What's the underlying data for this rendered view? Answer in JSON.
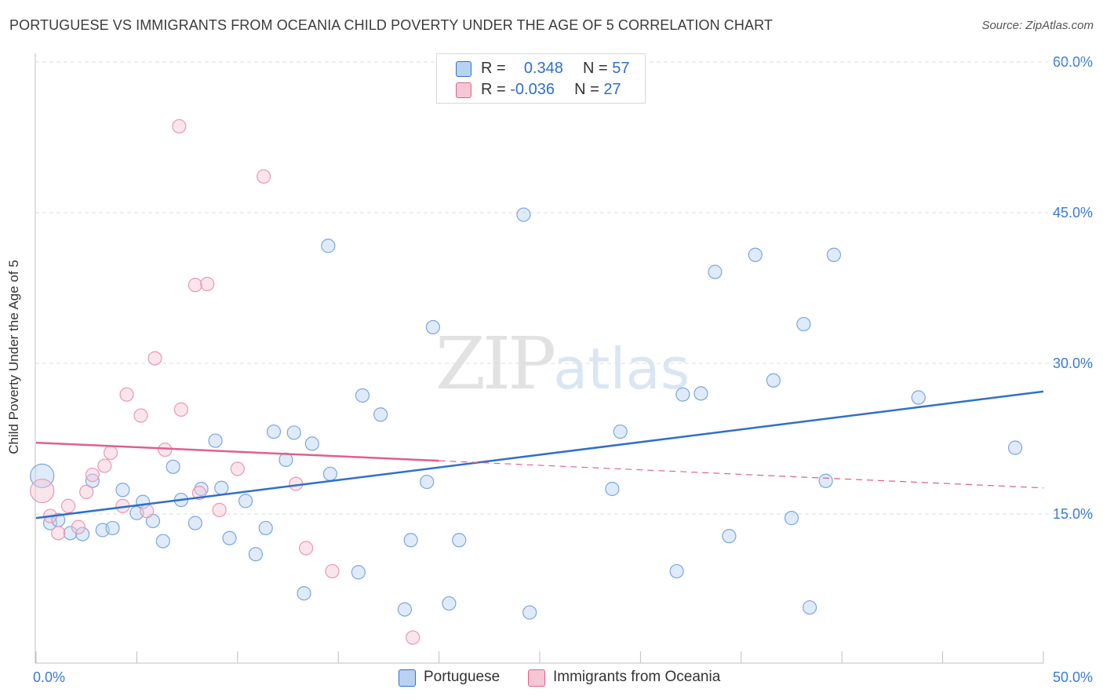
{
  "header": {
    "title": "PORTUGUESE VS IMMIGRANTS FROM OCEANIA CHILD POVERTY UNDER THE AGE OF 5 CORRELATION CHART",
    "source": "Source: ZipAtlas.com"
  },
  "watermark": {
    "zip": "ZIP",
    "atlas": "atlas"
  },
  "legend": {
    "rows": [
      {
        "r_label": "R =",
        "r_value": "0.348",
        "n_label": "N =",
        "n_value": "57",
        "color": "#b8d2f2"
      },
      {
        "r_label": "R =",
        "r_value": "-0.036",
        "n_label": "N =",
        "n_value": "27",
        "color": "#f7c6d4"
      }
    ]
  },
  "bottom_legend": {
    "items": [
      {
        "label": "Portuguese",
        "color": "#b8d2f2"
      },
      {
        "label": "Immigrants from Oceania",
        "color": "#f7c6d4"
      }
    ]
  },
  "chart_data": {
    "type": "scatter",
    "title": "PORTUGUESE VS IMMIGRANTS FROM OCEANIA CHILD POVERTY UNDER THE AGE OF 5 CORRELATION CHART",
    "xlabel": "",
    "ylabel": "Child Poverty Under the Age of 5",
    "xlim": [
      0,
      50
    ],
    "ylim": [
      0,
      61.5
    ],
    "x_tick_labels": [
      "0.0%",
      "50.0%"
    ],
    "y_ticks": [
      15,
      30,
      45,
      60
    ],
    "y_tick_labels": [
      "15.0%",
      "30.0%",
      "45.0%",
      "60.0%"
    ],
    "grid": true,
    "colors": {
      "portuguese": "#2f6fcf",
      "oceania": "#e0608a",
      "portuguese_fill": "#b8d2f2",
      "oceania_fill": "#f7c6d4"
    },
    "series": [
      {
        "name": "Portuguese",
        "points": [
          [
            0.3,
            18.8
          ],
          [
            0.7,
            14.1
          ],
          [
            1.1,
            14.4
          ],
          [
            1.7,
            13.1
          ],
          [
            2.3,
            13.0
          ],
          [
            2.8,
            18.3
          ],
          [
            3.3,
            13.4
          ],
          [
            3.8,
            13.6
          ],
          [
            4.3,
            17.4
          ],
          [
            5.0,
            15.1
          ],
          [
            5.3,
            16.2
          ],
          [
            5.8,
            14.3
          ],
          [
            6.3,
            12.3
          ],
          [
            6.8,
            19.7
          ],
          [
            7.2,
            16.4
          ],
          [
            7.9,
            14.1
          ],
          [
            8.2,
            17.5
          ],
          [
            8.9,
            22.3
          ],
          [
            9.2,
            17.6
          ],
          [
            9.6,
            12.6
          ],
          [
            10.4,
            16.3
          ],
          [
            10.9,
            11.0
          ],
          [
            11.4,
            13.6
          ],
          [
            11.8,
            23.2
          ],
          [
            12.4,
            20.4
          ],
          [
            12.8,
            23.1
          ],
          [
            13.3,
            7.1
          ],
          [
            13.7,
            22.0
          ],
          [
            14.5,
            41.7
          ],
          [
            14.6,
            19.0
          ],
          [
            16.0,
            9.2
          ],
          [
            16.2,
            26.8
          ],
          [
            17.1,
            24.9
          ],
          [
            18.3,
            5.5
          ],
          [
            18.6,
            12.4
          ],
          [
            19.4,
            18.2
          ],
          [
            19.7,
            33.6
          ],
          [
            20.5,
            6.1
          ],
          [
            21.0,
            12.4
          ],
          [
            24.2,
            44.8
          ],
          [
            24.5,
            5.2
          ],
          [
            28.6,
            17.5
          ],
          [
            29.0,
            23.2
          ],
          [
            31.8,
            9.3
          ],
          [
            32.1,
            26.9
          ],
          [
            33.0,
            27.0
          ],
          [
            33.7,
            39.1
          ],
          [
            34.4,
            12.8
          ],
          [
            35.7,
            40.8
          ],
          [
            36.6,
            28.3
          ],
          [
            37.5,
            14.6
          ],
          [
            38.1,
            33.9
          ],
          [
            38.4,
            5.7
          ],
          [
            39.2,
            18.3
          ],
          [
            39.6,
            40.8
          ],
          [
            43.8,
            26.6
          ],
          [
            48.6,
            21.6
          ]
        ]
      },
      {
        "name": "Immigrants from Oceania",
        "points": [
          [
            0.3,
            17.3
          ],
          [
            0.7,
            14.8
          ],
          [
            1.1,
            13.1
          ],
          [
            1.6,
            15.8
          ],
          [
            2.1,
            13.7
          ],
          [
            2.5,
            17.2
          ],
          [
            2.8,
            18.9
          ],
          [
            3.4,
            19.8
          ],
          [
            3.7,
            21.1
          ],
          [
            4.3,
            15.8
          ],
          [
            4.5,
            26.9
          ],
          [
            5.2,
            24.8
          ],
          [
            5.5,
            15.3
          ],
          [
            5.9,
            30.5
          ],
          [
            6.4,
            21.4
          ],
          [
            7.1,
            53.6
          ],
          [
            7.2,
            25.4
          ],
          [
            7.9,
            37.8
          ],
          [
            8.1,
            17.1
          ],
          [
            8.5,
            37.9
          ],
          [
            9.1,
            15.4
          ],
          [
            10.0,
            19.5
          ],
          [
            11.3,
            48.6
          ],
          [
            12.9,
            18.0
          ],
          [
            13.4,
            11.6
          ],
          [
            14.7,
            9.3
          ],
          [
            18.7,
            2.7
          ]
        ]
      }
    ],
    "trendlines": [
      {
        "name": "Portuguese",
        "x": [
          0,
          50
        ],
        "y": [
          14.6,
          27.2
        ]
      },
      {
        "name": "Immigrants from Oceania",
        "x": [
          0,
          20
        ],
        "y": [
          22.1,
          20.3
        ],
        "dashed_x": [
          20,
          50
        ],
        "dashed_y": [
          20.3,
          17.6
        ]
      }
    ]
  }
}
